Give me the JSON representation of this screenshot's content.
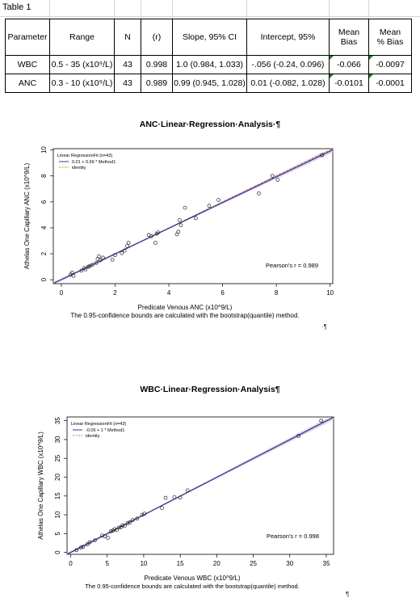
{
  "table": {
    "title": "Table 1",
    "headers": [
      "Parameter",
      "Range",
      "N",
      "(r)",
      "Slope, 95% CI",
      "Intercept, 95%",
      "Mean Bias",
      "Mean % Bias"
    ],
    "header_wrapped": {
      "mean_bias": [
        "Mean",
        "Bias"
      ],
      "mean_pct_bias": [
        "Mean",
        "% Bias"
      ]
    },
    "rows": [
      {
        "parameter": "WBC",
        "range": "0.5 - 35 (x10⁹/L)",
        "n": "43",
        "r": "0.998",
        "slope": "1.0 (0.984, 1.033)",
        "intercept": "-.056 (-0.24, 0.096)",
        "mean_bias": "-0.066",
        "mean_pct_bias": "-0.0097"
      },
      {
        "parameter": "ANC",
        "range": "0.3 - 10 (x10⁹/L)",
        "n": "43",
        "r": "0.989",
        "slope": "0.99 (0.945, 1.028)",
        "intercept": "0.01 (-0.082, 1.028)",
        "mean_bias": "-0.0101",
        "mean_pct_bias": "-0.0001"
      }
    ],
    "flag_color": "#1e7a1e"
  },
  "chart_data": [
    {
      "type": "scatter",
      "title": "ANC·Linear·Regression·Analysis·¶",
      "xlabel": "Predicate Venous ANC (x10^9/L)",
      "ylabel": "Athelas One Capillary ANC (x10^9/L)",
      "footnote": "The 0.95-confidence bounds are calculated with the bootstrap(quantile) method.",
      "trailing_mark": "·¶",
      "xlim": [
        -0.3,
        10.1
      ],
      "ylim": [
        -0.3,
        10.1
      ],
      "xticks": [
        0,
        2,
        4,
        6,
        8,
        10
      ],
      "yticks": [
        0,
        2,
        4,
        6,
        8,
        10
      ],
      "legend": {
        "title": "Linear RegressionFit (n=43)",
        "entries": [
          {
            "label": "0.01 + 0.99 * Method1",
            "color": "#3b3a8f",
            "style": "solid"
          },
          {
            "label": "identity",
            "color": "#e07b39",
            "style": "dashed"
          }
        ],
        "position": "top-left"
      },
      "annotation": "Pearson's r = 0.989",
      "fit": {
        "intercept": 0.01,
        "slope": 0.99
      },
      "colors": {
        "fit": "#3b3a8f",
        "band": "#d8ccee",
        "identity": "#e07b39",
        "points": "#222222"
      },
      "points": [
        [
          0.35,
          0.4
        ],
        [
          0.4,
          0.55
        ],
        [
          0.45,
          0.3
        ],
        [
          0.75,
          0.7
        ],
        [
          0.85,
          0.9
        ],
        [
          0.9,
          0.8
        ],
        [
          1.0,
          1.0
        ],
        [
          1.05,
          1.05
        ],
        [
          1.15,
          1.15
        ],
        [
          1.3,
          1.3
        ],
        [
          1.35,
          1.6
        ],
        [
          1.4,
          1.8
        ],
        [
          1.45,
          1.5
        ],
        [
          1.55,
          1.7
        ],
        [
          1.9,
          1.55
        ],
        [
          2.0,
          1.9
        ],
        [
          2.25,
          2.05
        ],
        [
          2.35,
          2.25
        ],
        [
          2.45,
          2.6
        ],
        [
          2.5,
          2.85
        ],
        [
          3.25,
          3.45
        ],
        [
          3.35,
          3.35
        ],
        [
          3.5,
          2.85
        ],
        [
          3.55,
          3.55
        ],
        [
          3.6,
          3.65
        ],
        [
          4.3,
          3.5
        ],
        [
          4.35,
          3.7
        ],
        [
          4.4,
          4.6
        ],
        [
          4.45,
          4.2
        ],
        [
          4.6,
          5.55
        ],
        [
          5.0,
          4.75
        ],
        [
          5.5,
          5.7
        ],
        [
          5.85,
          6.15
        ],
        [
          7.35,
          6.65
        ],
        [
          7.85,
          8.0
        ],
        [
          8.05,
          7.7
        ],
        [
          9.7,
          9.6
        ]
      ]
    },
    {
      "type": "scatter",
      "title": "WBC·Linear·Regression·Analysis¶",
      "xlabel": "Predicate Venous WBC (x10^9/L)",
      "ylabel": "Athelas One Capillary WBC (x10^9/L)",
      "footnote": "The 0.95-confidence bounds are calculated with the bootstrap(quantile) method.",
      "trailing_mark": "¶",
      "xlim": [
        -0.5,
        36
      ],
      "ylim": [
        -0.5,
        36
      ],
      "xticks": [
        0,
        5,
        10,
        15,
        20,
        25,
        30,
        35
      ],
      "yticks": [
        0,
        5,
        10,
        15,
        20,
        25,
        30,
        35
      ],
      "legend": {
        "title": "Linear RegressionFit (n=43)",
        "entries": [
          {
            "label": "-0.06 + 1 * Method1",
            "color": "#3b3a8f",
            "style": "solid"
          },
          {
            "label": "identity",
            "color": "#e07b39",
            "style": "dashed"
          }
        ],
        "position": "top-left"
      },
      "annotation": "Pearson's r = 0.998",
      "fit": {
        "intercept": -0.06,
        "slope": 1.0
      },
      "colors": {
        "fit": "#3b3a8f",
        "band": "#d8ccee",
        "identity": "#e07b39",
        "points": "#222222"
      },
      "points": [
        [
          0.8,
          0.6
        ],
        [
          1.4,
          1.3
        ],
        [
          1.7,
          1.5
        ],
        [
          2.3,
          2.2
        ],
        [
          2.6,
          2.7
        ],
        [
          3.3,
          3.2
        ],
        [
          4.3,
          4.5
        ],
        [
          4.7,
          4.3
        ],
        [
          5.1,
          3.9
        ],
        [
          5.5,
          5.6
        ],
        [
          5.8,
          5.8
        ],
        [
          6.0,
          6.2
        ],
        [
          6.3,
          6.0
        ],
        [
          6.6,
          6.6
        ],
        [
          6.9,
          6.7
        ],
        [
          7.1,
          7.2
        ],
        [
          7.4,
          7.1
        ],
        [
          7.8,
          7.8
        ],
        [
          8.1,
          8.0
        ],
        [
          8.5,
          8.6
        ],
        [
          9.1,
          9.0
        ],
        [
          9.8,
          10.0
        ],
        [
          10.1,
          10.3
        ],
        [
          12.5,
          11.8
        ],
        [
          13.0,
          14.5
        ],
        [
          14.2,
          14.7
        ],
        [
          15.0,
          14.6
        ],
        [
          16.0,
          16.5
        ],
        [
          31.2,
          31.0
        ],
        [
          34.3,
          35.0
        ]
      ]
    }
  ]
}
